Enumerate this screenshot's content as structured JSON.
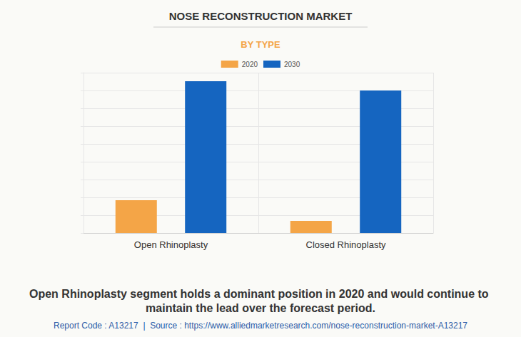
{
  "chart_data": {
    "type": "bar",
    "title": "NOSE RECONSTRUCTION MARKET",
    "subtitle": "BY TYPE",
    "annotations": [
      "Open Rhinoplasty segment holds a dominant position in 2020 and would continue to maintain the lead over the forecast period.",
      "Report Code : A13217  |  Source : https://www.alliedmarketresearch.com/nose-reconstruction-market-A13217"
    ],
    "categories": [
      "Open Rhinoplasty",
      "Closed Rhinoplasty"
    ],
    "series": [
      {
        "name": "2020",
        "color": "#f4a547",
        "values": [
          1.84,
          0.68
        ]
      },
      {
        "name": "2030",
        "color": "#1565c0",
        "values": [
          8.52,
          8.0
        ]
      }
    ],
    "ylim": [
      0,
      9
    ],
    "yticks": [
      0,
      1,
      2,
      3,
      4,
      5,
      6,
      7,
      8,
      9
    ],
    "grid": true,
    "legend": "top",
    "tick_labels": "x"
  }
}
